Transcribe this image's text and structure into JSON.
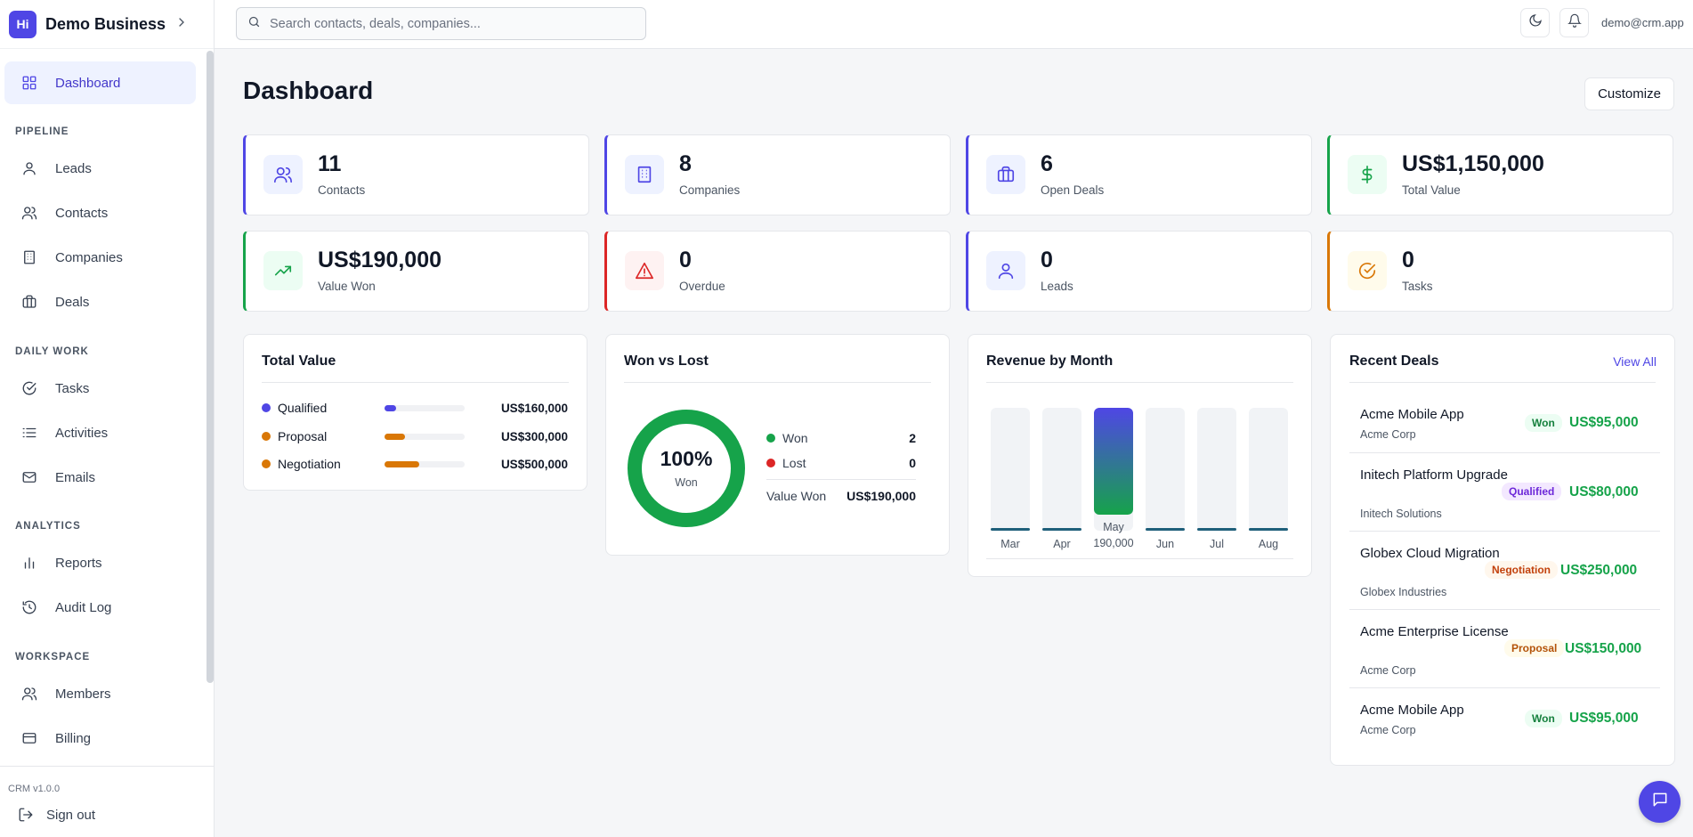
{
  "brand": {
    "initials": "Hi",
    "name": "Demo Business"
  },
  "sidebar": {
    "dashboard": "Dashboard",
    "sections": {
      "pipeline": "PIPELINE",
      "daily": "DAILY WORK",
      "analytics": "ANALYTICS",
      "workspace": "WORKSPACE"
    },
    "items": {
      "leads": "Leads",
      "contacts": "Contacts",
      "companies": "Companies",
      "deals": "Deals",
      "tasks": "Tasks",
      "activities": "Activities",
      "emails": "Emails",
      "reports": "Reports",
      "audit": "Audit Log",
      "members": "Members",
      "billing": "Billing"
    },
    "version": "CRM v1.0.0",
    "signout": "Sign out"
  },
  "topbar": {
    "search_placeholder": "Search contacts, deals, companies...",
    "user_email": "demo@crm.app"
  },
  "page": {
    "title": "Dashboard",
    "customize": "Customize"
  },
  "stats": [
    {
      "value": "11",
      "label": "Contacts",
      "accent": "#4f46e5"
    },
    {
      "value": "8",
      "label": "Companies",
      "accent": "#4f46e5"
    },
    {
      "value": "6",
      "label": "Open Deals",
      "accent": "#4f46e5"
    },
    {
      "value": "US$1,150,000",
      "label": "Total Value",
      "accent": "#16a34a"
    },
    {
      "value": "US$190,000",
      "label": "Value Won",
      "accent": "#16a34a"
    },
    {
      "value": "0",
      "label": "Overdue",
      "accent": "#dc2626"
    },
    {
      "value": "0",
      "label": "Leads",
      "accent": "#4f46e5"
    },
    {
      "value": "0",
      "label": "Tasks",
      "accent": "#d97706"
    }
  ],
  "total_value": {
    "title": "Total Value",
    "rows": [
      {
        "name": "Qualified",
        "value": "US$160,000",
        "fraction": 0.14,
        "color": "#4f46e5"
      },
      {
        "name": "Proposal",
        "value": "US$300,000",
        "fraction": 0.26,
        "color": "#d97706"
      },
      {
        "name": "Negotiation",
        "value": "US$500,000",
        "fraction": 0.43,
        "color": "#d97706"
      }
    ]
  },
  "won_lost": {
    "title": "Won vs Lost",
    "percent": "100%",
    "center_label": "Won",
    "won_label": "Won",
    "won": "2",
    "lost_label": "Lost",
    "lost": "0",
    "value_won_label": "Value Won",
    "value_won": "US$190,000"
  },
  "chart_data": {
    "type": "bar",
    "title": "Revenue by Month",
    "categories": [
      "Mar",
      "Apr",
      "May",
      "Jun",
      "Jul",
      "Aug"
    ],
    "values": [
      0,
      0,
      190000,
      0,
      0,
      0
    ],
    "value_labels": [
      "",
      "",
      "190,000",
      "",
      "",
      ""
    ],
    "ylim": [
      0,
      190000
    ]
  },
  "recent_deals": {
    "title": "Recent Deals",
    "view_all": "View All",
    "items": [
      {
        "name": "Acme Mobile App",
        "company": "Acme Corp",
        "stage": "Won",
        "amount": "US$95,000"
      },
      {
        "name": "Initech Platform Upgrade",
        "company": "Initech Solutions",
        "stage": "Qualified",
        "amount": "US$80,000"
      },
      {
        "name": "Globex Cloud Migration",
        "company": "Globex Industries",
        "stage": "Negotiation",
        "amount": "US$250,000"
      },
      {
        "name": "Acme Enterprise License",
        "company": "Acme Corp",
        "stage": "Proposal",
        "amount": "US$150,000"
      },
      {
        "name": "Acme Mobile App",
        "company": "Acme Corp",
        "stage": "Won",
        "amount": "US$95,000"
      }
    ]
  },
  "icons": {
    "stats": [
      "users-icon",
      "building-icon",
      "briefcase-icon",
      "dollar-icon",
      "trending-up-icon",
      "alert-triangle-icon",
      "user-icon",
      "check-circle-icon"
    ]
  }
}
